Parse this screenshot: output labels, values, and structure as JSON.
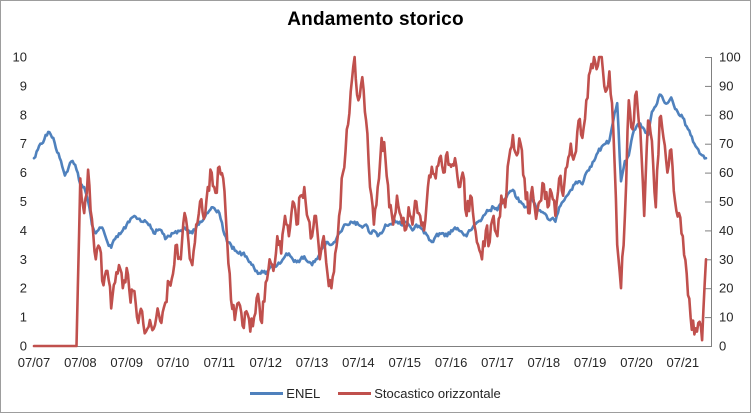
{
  "chart_data": {
    "type": "line",
    "title": "Andamento storico",
    "x_tick_labels": [
      "07/07",
      "07/08",
      "07/09",
      "07/10",
      "07/11",
      "07/12",
      "07/13",
      "07/14",
      "07/15",
      "07/16",
      "07/17",
      "07/18",
      "07/19",
      "07/20",
      "07/21"
    ],
    "left_axis": {
      "min": 0,
      "max": 10,
      "step": 1
    },
    "right_axis": {
      "min": 0,
      "max": 100,
      "step": 10
    },
    "grid": false,
    "legend_position": "bottom",
    "axis_color": "#808080",
    "label_color": "#262626",
    "points_per_x_tick": 12,
    "render_hints": {
      "upsample": 3,
      "seed": 1234,
      "noise": [
        0.07,
        3.2
      ]
    },
    "series": [
      {
        "name": "ENEL",
        "color": "#4F81BD",
        "axis": "left",
        "values": [
          6.5,
          6.8,
          7.0,
          7.3,
          7.4,
          7.2,
          6.7,
          6.4,
          5.9,
          6.2,
          6.4,
          6.1,
          5.6,
          5.5,
          5.0,
          4.2,
          3.9,
          4.1,
          4.0,
          3.6,
          3.4,
          3.7,
          3.9,
          4.0,
          4.2,
          4.4,
          4.5,
          4.4,
          4.3,
          4.3,
          4.2,
          3.9,
          4.0,
          4.0,
          3.7,
          3.8,
          3.9,
          3.9,
          4.0,
          4.1,
          4.0,
          3.9,
          4.1,
          4.3,
          4.4,
          4.6,
          4.8,
          4.7,
          4.6,
          4.0,
          3.6,
          3.5,
          3.3,
          3.2,
          3.2,
          3.1,
          2.9,
          2.7,
          2.5,
          2.6,
          2.5,
          2.7,
          2.8,
          2.8,
          2.9,
          3.1,
          3.2,
          3.0,
          2.9,
          3.0,
          3.1,
          2.9,
          2.8,
          3.0,
          3.2,
          3.5,
          3.6,
          3.5,
          3.6,
          3.9,
          4.1,
          4.2,
          4.3,
          4.3,
          4.2,
          4.1,
          4.2,
          3.9,
          4.0,
          3.8,
          3.9,
          4.2,
          4.2,
          4.3,
          4.3,
          4.2,
          4.3,
          4.2,
          4.0,
          4.2,
          4.1,
          3.9,
          3.8,
          3.6,
          3.8,
          3.9,
          3.9,
          3.8,
          4.0,
          4.1,
          4.0,
          3.9,
          3.8,
          4.0,
          4.2,
          4.3,
          4.4,
          4.6,
          4.7,
          4.8,
          4.7,
          4.9,
          5.1,
          5.3,
          5.4,
          5.1,
          5.0,
          4.8,
          4.9,
          5.1,
          4.8,
          4.7,
          4.6,
          4.4,
          4.4,
          4.3,
          4.8,
          5.0,
          5.2,
          5.4,
          5.6,
          5.7,
          5.6,
          6.0,
          6.2,
          6.4,
          6.7,
          6.9,
          7.0,
          7.1,
          7.8,
          8.4,
          5.7,
          6.4,
          6.6,
          7.3,
          7.6,
          7.7,
          7.5,
          7.3,
          8.1,
          8.3,
          8.7,
          8.5,
          8.4,
          8.6,
          8.2,
          8.0,
          7.9,
          7.6,
          7.3,
          7.0,
          6.8,
          6.6,
          6.5
        ]
      },
      {
        "name": "Stocastico orizzontale",
        "color": "#C0504D",
        "axis": "right",
        "values": [
          0,
          0,
          0,
          0,
          0,
          0,
          0,
          0,
          0,
          0,
          0,
          0,
          58,
          46,
          61,
          44,
          30,
          34,
          21,
          26,
          13,
          22,
          28,
          20,
          27,
          15,
          19,
          8,
          12,
          5,
          9,
          6,
          13,
          8,
          15,
          22,
          25,
          35,
          30,
          46,
          36,
          28,
          42,
          50,
          44,
          55,
          60,
          53,
          62,
          58,
          37,
          16,
          9,
          15,
          7,
          12,
          5,
          10,
          18,
          8,
          22,
          30,
          26,
          38,
          32,
          45,
          38,
          50,
          42,
          52,
          55,
          44,
          38,
          45,
          30,
          38,
          25,
          20,
          32,
          45,
          60,
          75,
          88,
          100,
          85,
          93,
          78,
          55,
          42,
          55,
          72,
          65,
          48,
          42,
          52,
          45,
          40,
          48,
          42,
          50,
          45,
          40,
          55,
          62,
          58,
          65,
          60,
          67,
          62,
          65,
          55,
          60,
          45,
          52,
          42,
          35,
          30,
          40,
          36,
          45,
          38,
          52,
          48,
          65,
          73,
          66,
          70,
          58,
          46,
          55,
          44,
          50,
          56,
          48,
          53,
          45,
          58,
          52,
          62,
          70,
          66,
          78,
          72,
          85,
          95,
          100,
          97,
          100,
          88,
          95,
          75,
          35,
          20,
          45,
          85,
          75,
          88,
          75,
          45,
          78,
          71,
          48,
          79,
          72,
          60,
          68,
          50,
          46,
          38,
          25,
          10,
          4,
          8,
          2,
          30
        ]
      }
    ]
  }
}
